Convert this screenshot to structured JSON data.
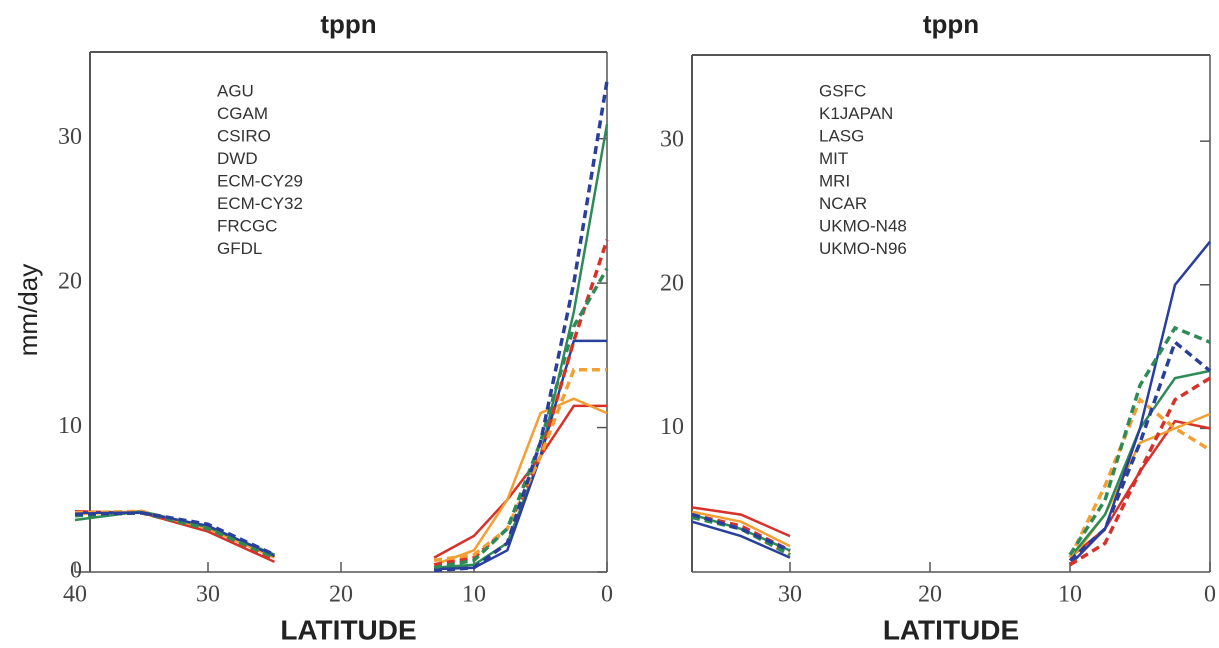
{
  "chart_data": [
    {
      "type": "line",
      "title": "tppn",
      "ylabel": "mm/day",
      "xlabel": "LATITUDE",
      "x": [
        40,
        35,
        30,
        25,
        20,
        13,
        10,
        7.5,
        5,
        2.5,
        0
      ],
      "xlim": [
        40,
        0
      ],
      "xticks": [
        40,
        30,
        20,
        10,
        0
      ],
      "ylim": [
        0,
        36
      ],
      "yticks": [
        0,
        10,
        20,
        30
      ],
      "series": [
        {
          "name": "AGU",
          "color": "#d7322a",
          "dashed": false,
          "values": [
            4.2,
            4.1,
            2.8,
            0.7,
            null,
            1,
            2.5,
            5,
            8,
            11.5,
            11.5
          ]
        },
        {
          "name": "CGAM",
          "color": "#f2a033",
          "dashed": false,
          "values": [
            4,
            4.2,
            3,
            1,
            null,
            0.5,
            1.5,
            5,
            11,
            12,
            11
          ]
        },
        {
          "name": "CSIRO",
          "color": "#2e8b57",
          "dashed": false,
          "values": [
            3.6,
            4.2,
            3.1,
            1.2,
            null,
            0.3,
            0.5,
            2,
            8,
            18,
            31
          ]
        },
        {
          "name": "DWD",
          "color": "#2a3f9b",
          "dashed": false,
          "values": [
            4.1,
            4.1,
            3.2,
            1.1,
            null,
            0.2,
            0.3,
            1.5,
            8,
            16,
            16
          ]
        },
        {
          "name": "ECM-CY29",
          "color": "#d7322a",
          "dashed": true,
          "values": [
            4,
            4.1,
            2.9,
            0.9,
            null,
            0.5,
            1,
            3,
            8,
            16,
            23
          ]
        },
        {
          "name": "ECM-CY32",
          "color": "#f2a033",
          "dashed": true,
          "values": [
            4.1,
            4.2,
            3,
            1,
            null,
            0.8,
            1.2,
            3,
            8,
            14,
            14
          ]
        },
        {
          "name": "FRCGC",
          "color": "#2e8b57",
          "dashed": true,
          "values": [
            3.9,
            4.1,
            3,
            1,
            null,
            0.3,
            0.8,
            3,
            9,
            17,
            21
          ]
        },
        {
          "name": "GFDL",
          "color": "#2a3f9b",
          "dashed": true,
          "values": [
            4,
            4.1,
            3.3,
            1.2,
            null,
            0.1,
            0.3,
            2,
            9,
            20,
            34
          ]
        }
      ]
    },
    {
      "type": "line",
      "title": "tppn",
      "xlabel": "LATITUDE",
      "x": [
        37,
        33.5,
        30,
        20,
        10,
        7.5,
        5,
        2.5,
        0
      ],
      "xlim": [
        37,
        0
      ],
      "xticks": [
        30,
        20,
        10,
        0
      ],
      "ylim": [
        0,
        36
      ],
      "yticks": [
        10,
        20,
        30
      ],
      "series": [
        {
          "name": "GSFC",
          "color": "#d7322a",
          "dashed": false,
          "values": [
            4.5,
            4,
            2.5,
            null,
            1,
            3,
            7,
            10.5,
            10
          ]
        },
        {
          "name": "K1JAPAN",
          "color": "#f2a033",
          "dashed": false,
          "values": [
            4.2,
            3.5,
            1.8,
            null,
            0.8,
            4,
            9,
            10,
            11
          ]
        },
        {
          "name": "LASG",
          "color": "#2e8b57",
          "dashed": false,
          "values": [
            4,
            3,
            1.5,
            null,
            1,
            4,
            10,
            13.5,
            14
          ]
        },
        {
          "name": "MIT",
          "color": "#2a3f9b",
          "dashed": false,
          "values": [
            3.5,
            2.5,
            1,
            null,
            0.5,
            3,
            10,
            20,
            23
          ]
        },
        {
          "name": "MRI",
          "color": "#d7322a",
          "dashed": true,
          "values": [
            4,
            3.2,
            1.5,
            null,
            0.5,
            2,
            7,
            12,
            13.5
          ]
        },
        {
          "name": "NCAR",
          "color": "#f2a033",
          "dashed": true,
          "values": [
            4,
            3,
            1.2,
            null,
            1,
            6,
            12,
            10,
            8.5
          ]
        },
        {
          "name": "UKMO-N48",
          "color": "#2e8b57",
          "dashed": true,
          "values": [
            3.8,
            3,
            1.2,
            null,
            1.2,
            5,
            13,
            17,
            16
          ]
        },
        {
          "name": "UKMO-N96",
          "color": "#2a3f9b",
          "dashed": true,
          "values": [
            4,
            3,
            1.5,
            null,
            0.8,
            3,
            9,
            16,
            14
          ]
        }
      ]
    }
  ]
}
